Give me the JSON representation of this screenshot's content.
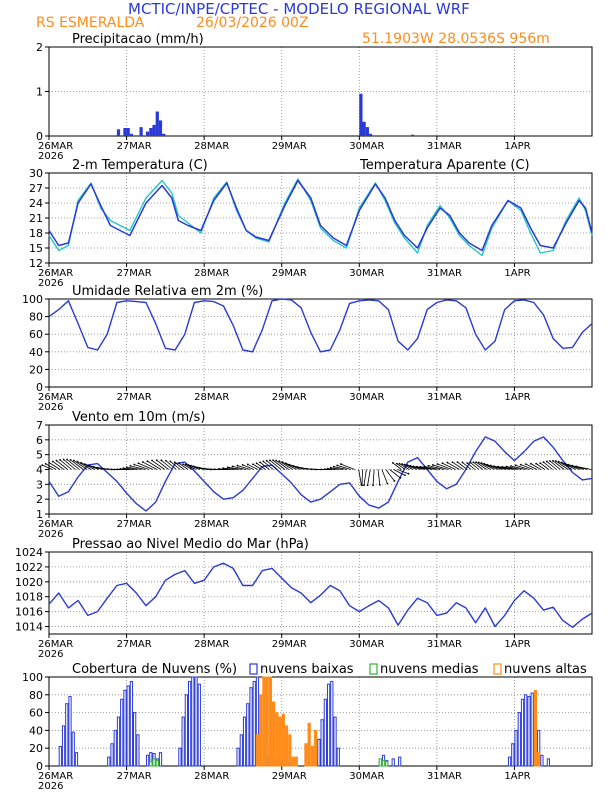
{
  "header": {
    "title": "MCTIC/INPE/CPTEC - MODELO REGIONAL WRF",
    "location": "RS ESMERALDA",
    "run_date": "26/03/2026 00Z",
    "coords": "51.1903W 28.0536S 956m"
  },
  "colors": {
    "blue": "#2a3ad6",
    "cyan": "#22c6c6",
    "orange": "#ff8c1a",
    "green": "#2fb52f",
    "black": "#000000"
  },
  "xaxis": {
    "labels": [
      "26MAR",
      "27MAR",
      "28MAR",
      "29MAR",
      "30MAR",
      "31MAR",
      "1APR"
    ],
    "year": "2026",
    "hours": 168
  },
  "chart_data": [
    {
      "id": "precip",
      "type": "bar",
      "title": "Precipitacao (mm/h)",
      "ylim": [
        0,
        2
      ],
      "yticks": [
        0,
        1,
        2
      ],
      "x_hours": [
        21,
        23,
        24,
        25,
        28,
        30,
        31,
        32,
        33,
        34,
        35,
        96,
        97,
        98,
        99,
        112
      ],
      "values": [
        0.15,
        0.18,
        0.18,
        0.05,
        0.2,
        0.1,
        0.18,
        0.25,
        0.55,
        0.35,
        0.05,
        0.95,
        0.32,
        0.2,
        0.05,
        0.03
      ]
    },
    {
      "id": "temp",
      "type": "line",
      "title": "2-m Temperatura (C)",
      "legend": "Temperatura Aparente (C)",
      "ylim": [
        12,
        30
      ],
      "yticks": [
        12,
        15,
        18,
        21,
        24,
        27,
        30
      ],
      "x_hours": [
        0,
        3,
        6,
        9,
        12,
        15,
        18,
        21,
        24,
        27,
        30,
        33,
        36,
        39,
        42,
        45,
        48,
        51,
        54,
        57,
        60,
        63,
        66,
        69,
        72,
        75,
        78,
        81,
        84,
        87,
        90,
        93,
        96,
        99,
        102,
        105,
        108,
        111,
        114,
        117,
        120,
        123,
        126,
        129,
        132,
        135,
        138,
        141,
        144,
        147,
        150,
        153,
        156,
        159,
        162,
        165,
        168
      ],
      "series": [
        {
          "name": "2-m Temperatura (C)",
          "values": [
            18.5,
            15.5,
            16,
            24,
            27.8,
            23.5,
            19.5,
            18.5,
            17.5,
            24,
            27.5,
            25,
            20.5,
            19.5,
            18.5,
            24.5,
            28,
            23,
            18.5,
            17.2,
            16.5,
            23.5,
            28.5,
            25,
            19.5,
            17,
            15.5,
            22.5,
            27.8,
            25,
            20.5,
            17.5,
            15,
            19,
            23,
            21.5,
            18,
            16,
            14.5,
            19.5,
            24.5,
            23,
            19,
            15.5,
            15,
            20,
            24.5,
            23,
            18
          ],
          "x": [
            0,
            3,
            6,
            9,
            13,
            16,
            19,
            22,
            25,
            30,
            35,
            38,
            40,
            43,
            47,
            51,
            55,
            58,
            61,
            64,
            68,
            73,
            77,
            81,
            84,
            88,
            92,
            96,
            101,
            104,
            107,
            110,
            114,
            117,
            121,
            124,
            127,
            130,
            134,
            137,
            142,
            146,
            149,
            152,
            156,
            160,
            164,
            166,
            168
          ]
        },
        {
          "name": "Temperatura Aparente (C)",
          "values": [
            17.5,
            14.5,
            15.5,
            24.5,
            28,
            23,
            20.5,
            19.5,
            18.5,
            25,
            28.5,
            26,
            21.5,
            20,
            18,
            25,
            28.2,
            22.5,
            18.5,
            17,
            16.2,
            24,
            28.8,
            24.5,
            19,
            16.5,
            15,
            23,
            28,
            24.5,
            20,
            17,
            14,
            19.5,
            23.5,
            21,
            17.5,
            15.5,
            13.5,
            19,
            24.5,
            22.5,
            18,
            14,
            14.5,
            20.5,
            25,
            22.5,
            17.5
          ],
          "x": [
            0,
            3,
            6,
            9,
            13,
            16,
            19,
            22,
            25,
            30,
            35,
            38,
            40,
            43,
            47,
            51,
            55,
            58,
            61,
            64,
            68,
            73,
            77,
            81,
            84,
            88,
            92,
            96,
            101,
            104,
            107,
            110,
            114,
            117,
            121,
            124,
            127,
            130,
            134,
            137,
            142,
            146,
            149,
            152,
            156,
            160,
            164,
            166,
            168
          ]
        }
      ]
    },
    {
      "id": "rh",
      "type": "line",
      "title": "Umidade Relativa em 2m (%)",
      "ylim": [
        0,
        100
      ],
      "yticks": [
        0,
        20,
        40,
        60,
        80,
        100
      ],
      "series": [
        {
          "name": "Umidade Relativa em 2m (%)",
          "x": [
            0,
            3,
            6,
            9,
            12,
            15,
            18,
            21,
            24,
            27,
            30,
            33,
            36,
            39,
            42,
            45,
            48,
            51,
            54,
            57,
            60,
            63,
            66,
            69,
            72,
            75,
            78,
            81,
            84,
            87,
            90,
            93,
            96,
            99,
            102,
            105,
            108,
            111,
            114,
            117,
            120,
            123,
            126,
            129,
            132,
            135,
            138,
            141,
            144,
            147,
            150,
            153,
            156,
            159,
            162,
            165,
            168
          ],
          "values": [
            80,
            88,
            98,
            72,
            45,
            42,
            60,
            96,
            98,
            97,
            96,
            72,
            44,
            42,
            60,
            96,
            98,
            97,
            92,
            70,
            42,
            40,
            65,
            98,
            100,
            99,
            90,
            62,
            40,
            42,
            65,
            95,
            98,
            99,
            98,
            88,
            52,
            42,
            55,
            88,
            96,
            99,
            98,
            90,
            60,
            42,
            52,
            88,
            98,
            99,
            96,
            82,
            55,
            44,
            45,
            62,
            72
          ]
        }
      ]
    },
    {
      "id": "wind",
      "type": "line",
      "title": "Vento em 10m (m/s)",
      "ylim": [
        1,
        7
      ],
      "yticks": [
        1,
        2,
        3,
        4,
        5,
        6,
        7
      ],
      "series": [
        {
          "name": "Vento em 10m (m/s)",
          "x": [
            0,
            3,
            6,
            9,
            12,
            15,
            18,
            21,
            24,
            27,
            30,
            33,
            36,
            39,
            42,
            45,
            48,
            51,
            54,
            57,
            60,
            63,
            66,
            69,
            72,
            75,
            78,
            81,
            84,
            87,
            90,
            93,
            96,
            99,
            102,
            105,
            108,
            111,
            114,
            117,
            120,
            123,
            126,
            129,
            132,
            135,
            138,
            141,
            144,
            147,
            150,
            153,
            156,
            159,
            162,
            165,
            168
          ],
          "values": [
            3.2,
            2.2,
            2.5,
            3.5,
            4.3,
            4.4,
            3.8,
            3.2,
            2.4,
            1.7,
            1.2,
            1.8,
            3.2,
            4.4,
            4.5,
            3.9,
            3.2,
            2.5,
            2.0,
            2.1,
            2.6,
            3.4,
            4.2,
            4.3,
            3.7,
            3.1,
            2.3,
            1.8,
            2.0,
            2.5,
            3.0,
            3.1,
            2.2,
            1.6,
            1.4,
            1.8,
            3.2,
            4.5,
            4.8,
            4.0,
            3.2,
            2.7,
            3.0,
            4.0,
            5.2,
            6.2,
            5.9,
            5.2,
            4.6,
            5.2,
            5.9,
            6.2,
            5.5,
            4.6,
            3.8,
            3.3,
            3.4
          ]
        }
      ]
    },
    {
      "id": "pressure",
      "type": "line",
      "title": "Pressao ao Nivel Medio do Mar (hPa)",
      "ylim": [
        1013,
        1024
      ],
      "yticks": [
        1014,
        1016,
        1018,
        1020,
        1022,
        1024
      ],
      "series": [
        {
          "name": "Pressao ao Nivel Medio do Mar (hPa)",
          "x": [
            0,
            3,
            6,
            9,
            12,
            15,
            18,
            21,
            24,
            27,
            30,
            33,
            36,
            39,
            42,
            45,
            48,
            51,
            54,
            57,
            60,
            63,
            66,
            69,
            72,
            75,
            78,
            81,
            84,
            87,
            90,
            93,
            96,
            99,
            102,
            105,
            108,
            111,
            114,
            117,
            120,
            123,
            126,
            129,
            132,
            135,
            138,
            141,
            144,
            147,
            150,
            153,
            156,
            159,
            162,
            165,
            168
          ],
          "values": [
            1017,
            1018.5,
            1016.5,
            1017.5,
            1015.5,
            1016,
            1017.8,
            1019.5,
            1019.8,
            1018.5,
            1016.8,
            1018,
            1020.2,
            1021,
            1021.5,
            1019.8,
            1020.2,
            1022,
            1022.5,
            1021.8,
            1019.5,
            1019.5,
            1021.5,
            1021.8,
            1020.5,
            1019.2,
            1018.5,
            1017.2,
            1018.2,
            1019.5,
            1018.8,
            1016.8,
            1016,
            1016.8,
            1017.5,
            1016.5,
            1014.2,
            1016.2,
            1017.8,
            1017.2,
            1015.5,
            1015.8,
            1017.2,
            1016.5,
            1014.5,
            1016.5,
            1014.0,
            1015.5,
            1017.5,
            1018.8,
            1017.8,
            1016.2,
            1016.6,
            1014.8,
            1013.9,
            1015.0,
            1015.8
          ]
        }
      ]
    },
    {
      "id": "clouds",
      "type": "bar",
      "title": "Cobertura de Nuvens (%)",
      "legend": [
        "nuvens baixas",
        "nuvens medias",
        "nuvens altas"
      ],
      "ylim": [
        0,
        100
      ],
      "yticks": [
        0,
        20,
        40,
        60,
        80,
        100
      ],
      "series": [
        {
          "name": "nuvens baixas",
          "x_hours": [
            3,
            4,
            5,
            6,
            7,
            8,
            18,
            19,
            20,
            21,
            22,
            23,
            24,
            25,
            26,
            27,
            30,
            31,
            32,
            33,
            34,
            40,
            41,
            42,
            43,
            44,
            45,
            46,
            58,
            59,
            60,
            61,
            62,
            63,
            64,
            67,
            68,
            69,
            70,
            71,
            72,
            73,
            74,
            82,
            83,
            84,
            85,
            86,
            87,
            88,
            89,
            102,
            103,
            104,
            106,
            108,
            142,
            143,
            144,
            145,
            146,
            147,
            148,
            149,
            150,
            151,
            152,
            154
          ],
          "values": [
            22,
            45,
            70,
            78,
            38,
            15,
            10,
            25,
            40,
            55,
            75,
            85,
            90,
            95,
            60,
            35,
            12,
            15,
            14,
            8,
            15,
            20,
            55,
            80,
            95,
            100,
            100,
            92,
            20,
            35,
            55,
            70,
            88,
            95,
            100,
            12,
            8,
            5,
            10,
            5,
            5,
            3,
            3,
            8,
            30,
            52,
            75,
            92,
            95,
            55,
            20,
            5,
            12,
            6,
            8,
            10,
            10,
            25,
            40,
            60,
            75,
            80,
            78,
            82,
            60,
            40,
            12,
            8
          ]
        },
        {
          "name": "nuvens medias",
          "x_hours": [
            31,
            32,
            33,
            102,
            103,
            104
          ],
          "values": [
            5,
            8,
            6,
            8,
            6,
            5
          ]
        },
        {
          "name": "nuvens altas",
          "x_hours": [
            64,
            65,
            66,
            67,
            68,
            69,
            70,
            71,
            72,
            73,
            74,
            75,
            76,
            79,
            80,
            81,
            82,
            150,
            151
          ],
          "values": [
            35,
            80,
            100,
            100,
            100,
            72,
            60,
            55,
            58,
            45,
            35,
            10,
            10,
            25,
            48,
            22,
            40,
            85,
            15
          ]
        }
      ]
    }
  ]
}
